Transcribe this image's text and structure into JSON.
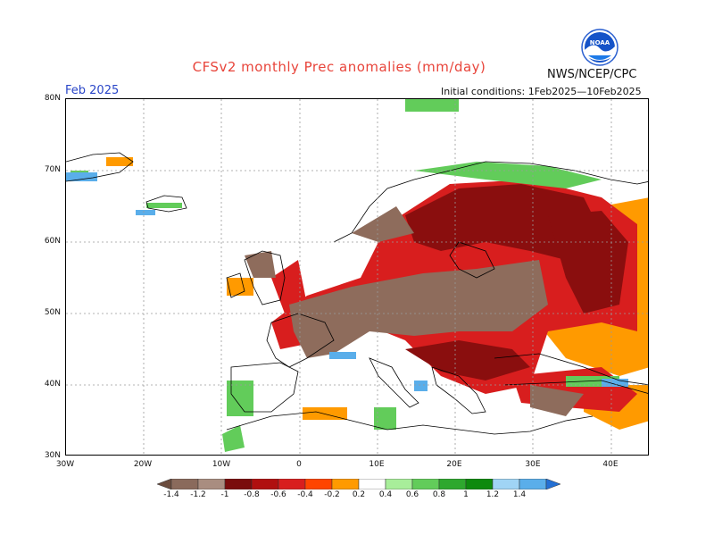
{
  "header": {
    "title": "CFSv2 monthly Prec anomalies (mm/day)",
    "org": "NWS/NCEP/CPC",
    "month": "Feb 2025",
    "initial_conditions": "Initial conditions: 1Feb2025—10Feb2025",
    "logo_text": "NOAA"
  },
  "axes": {
    "lat_labels": [
      "80N",
      "70N",
      "60N",
      "50N",
      "40N",
      "30N"
    ],
    "lon_labels": [
      "30W",
      "20W",
      "10W",
      "0",
      "10E",
      "20E",
      "30E",
      "40E"
    ]
  },
  "colorbar": {
    "labels": [
      "-1.4",
      "-1.2",
      "-1",
      "-0.8",
      "-0.6",
      "-0.4",
      "-0.2",
      "0.2",
      "0.4",
      "0.6",
      "0.8",
      "1",
      "1.2",
      "1.4"
    ],
    "colors": [
      "#6b4c3e",
      "#8a6a5c",
      "#a98d80",
      "#7a0c0c",
      "#b01010",
      "#d81e1e",
      "#ff4500",
      "#ff9a00",
      "#ffffff",
      "#a8ee9a",
      "#62cc5a",
      "#2ea82e",
      "#0e8a0e",
      "#a0d4f5",
      "#5aaeea",
      "#2470d4"
    ]
  },
  "colors": {
    "title": "#e8443a",
    "month_label": "#2a46c8"
  }
}
